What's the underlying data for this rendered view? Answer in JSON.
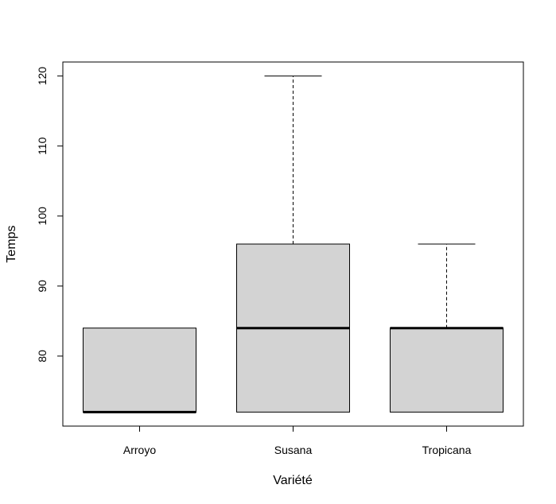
{
  "chart_data": {
    "type": "boxplot",
    "title": "",
    "xlabel": "Variété",
    "ylabel": "Temps",
    "ylim": [
      70,
      122
    ],
    "yticks": [
      80,
      90,
      100,
      110,
      120
    ],
    "categories": [
      "Arroyo",
      "Susana",
      "Tropicana"
    ],
    "boxes": [
      {
        "category": "Arroyo",
        "whisker_low": 72,
        "q1": 72,
        "median": 72,
        "q3": 84,
        "whisker_high": 84
      },
      {
        "category": "Susana",
        "whisker_low": 72,
        "q1": 72,
        "median": 84,
        "q3": 96,
        "whisker_high": 120
      },
      {
        "category": "Tropicana",
        "whisker_low": 72,
        "q1": 72,
        "median": 84,
        "q3": 84,
        "whisker_high": 96
      }
    ],
    "box_color": "#d3d3d3",
    "grid": false,
    "legend": "none"
  }
}
